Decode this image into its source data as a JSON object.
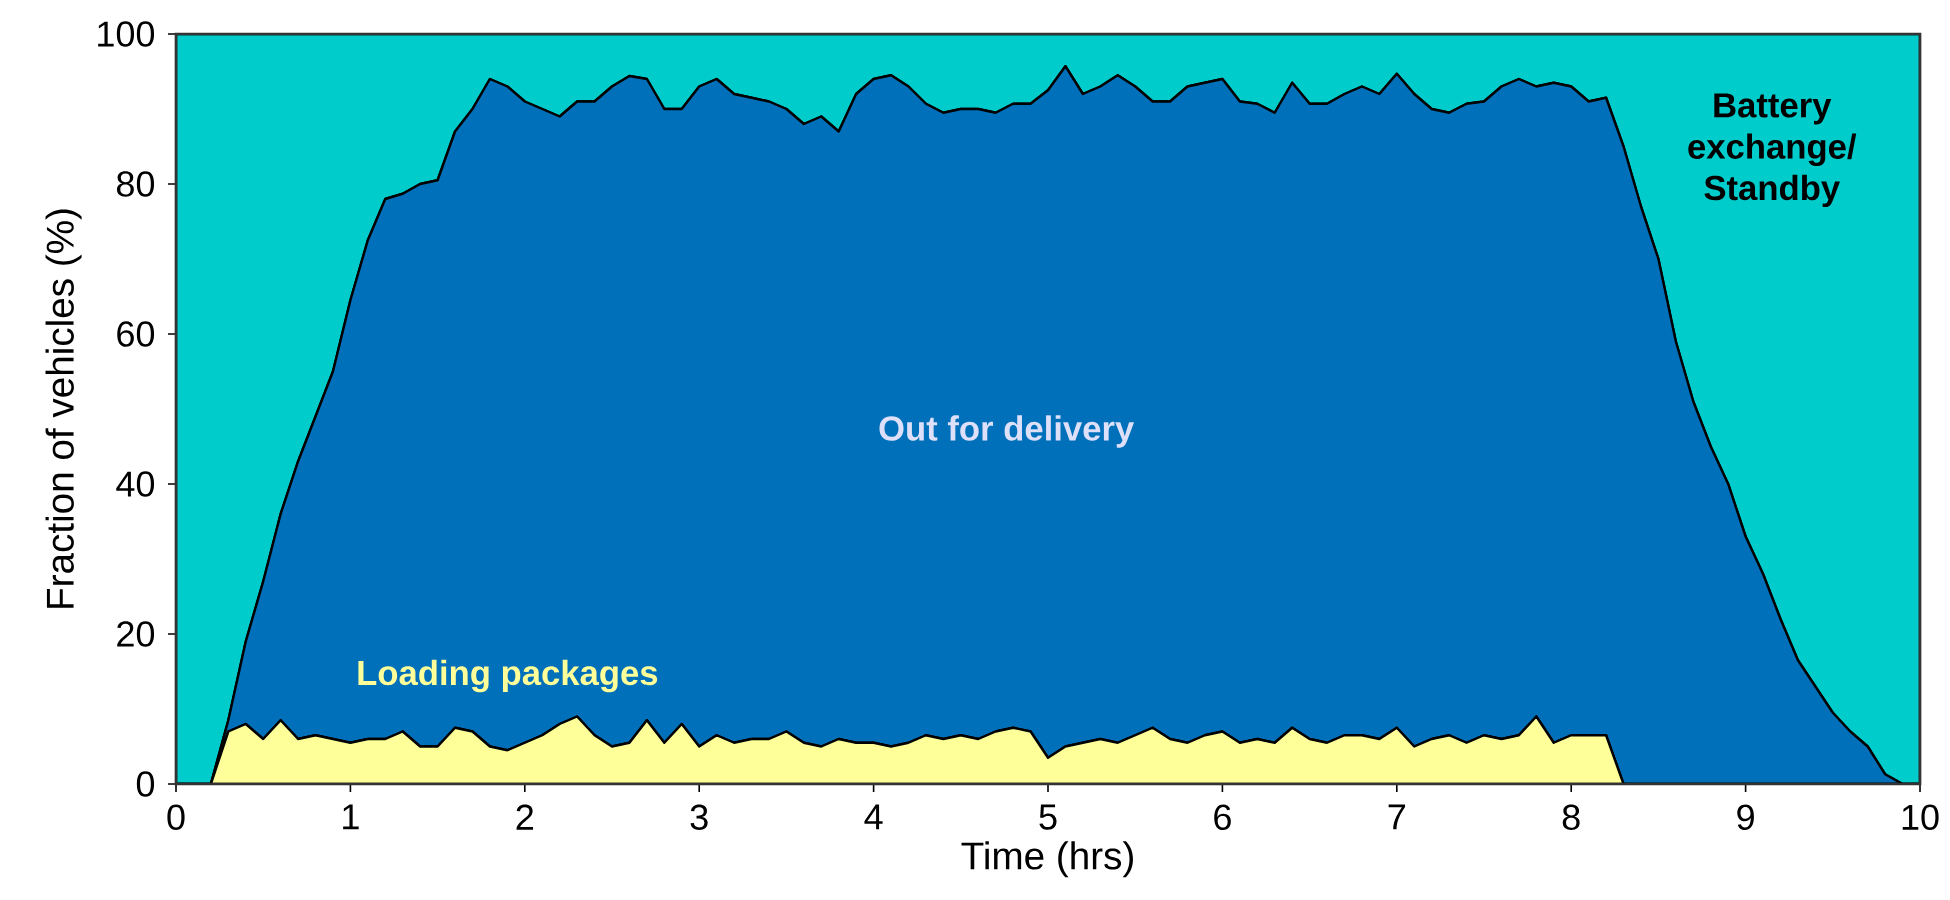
{
  "chart_data": {
    "type": "area",
    "stacked": true,
    "xlabel": "Time (hrs)",
    "ylabel": "Fraction of vehicles (%)",
    "xlim": [
      0,
      10
    ],
    "ylim": [
      0,
      100
    ],
    "xticks": [
      0,
      1,
      2,
      3,
      4,
      5,
      6,
      7,
      8,
      9,
      10
    ],
    "yticks": [
      0,
      20,
      40,
      60,
      80,
      100
    ],
    "grid": false,
    "legend": false,
    "x": [
      0,
      0.1,
      0.2,
      0.3,
      0.4,
      0.5,
      0.6,
      0.7,
      0.8,
      0.9,
      1,
      1.1,
      1.2,
      1.3,
      1.4,
      1.5,
      1.6,
      1.7,
      1.8,
      1.9,
      2,
      2.1,
      2.2,
      2.3,
      2.4,
      2.5,
      2.6,
      2.7,
      2.8,
      2.9,
      3,
      3.1,
      3.2,
      3.3,
      3.4,
      3.5,
      3.6,
      3.7,
      3.8,
      3.9,
      4,
      4.1,
      4.2,
      4.3,
      4.4,
      4.5,
      4.6,
      4.7,
      4.8,
      4.9,
      5,
      5.1,
      5.2,
      5.3,
      5.4,
      5.5,
      5.6,
      5.7,
      5.8,
      5.9,
      6,
      6.1,
      6.2,
      6.3,
      6.4,
      6.5,
      6.6,
      6.7,
      6.8,
      6.9,
      7,
      7.1,
      7.2,
      7.3,
      7.4,
      7.5,
      7.6,
      7.7,
      7.8,
      7.9,
      8,
      8.1,
      8.2,
      8.3,
      8.4,
      8.5,
      8.6,
      8.7,
      8.8,
      8.9,
      9,
      9.1,
      9.2,
      9.3,
      9.4,
      9.5,
      9.6,
      9.7,
      9.8,
      9.9,
      10
    ],
    "series": [
      {
        "name": "Loading packages",
        "color": "#ffff99",
        "values": [
          0,
          0,
          0,
          7,
          8,
          6,
          8.5,
          6,
          6.5,
          6,
          5.5,
          6,
          6,
          7,
          5,
          5,
          7.5,
          7,
          5,
          4.5,
          5.5,
          6.5,
          8,
          9,
          6.5,
          5,
          5.5,
          8.5,
          5.5,
          8,
          5,
          6.5,
          5.5,
          6,
          6,
          7,
          5.5,
          5,
          6,
          5.5,
          5.5,
          5,
          5.5,
          6.5,
          6,
          6.5,
          6,
          7,
          7.5,
          7,
          3.5,
          5,
          5.5,
          6,
          5.5,
          6.5,
          7.5,
          6,
          5.5,
          6.5,
          7,
          5.5,
          6,
          5.5,
          7.5,
          6,
          5.5,
          6.5,
          6.5,
          6,
          7.5,
          5,
          6,
          6.5,
          5.5,
          6.5,
          6,
          6.5,
          9,
          5.5,
          6.5,
          6.5,
          6.5,
          0,
          0,
          0,
          0,
          0,
          0,
          0,
          0,
          0,
          0,
          0,
          0,
          0,
          0,
          0,
          0,
          0,
          0
        ]
      },
      {
        "name": "Out for delivery",
        "color": "#0070bb",
        "values": [
          0,
          0,
          0,
          1.5,
          11,
          21,
          27.5,
          37,
          42.5,
          49,
          59,
          66.5,
          72,
          71.7,
          75,
          75.5,
          79.5,
          83,
          89,
          88.5,
          85.5,
          83.5,
          81,
          82,
          84.5,
          88,
          88.9,
          85.5,
          84.5,
          82,
          88,
          87.5,
          86.5,
          85.5,
          85,
          83,
          82.5,
          84,
          81,
          86.5,
          88.5,
          89.5,
          87.5,
          84.2,
          83.5,
          83.5,
          84,
          82.5,
          83.2,
          83.7,
          89,
          90.7,
          86.5,
          87,
          89,
          86.5,
          83.5,
          85,
          87.5,
          87,
          87,
          85.5,
          84.7,
          84,
          86,
          84.7,
          85.2,
          85.5,
          86.5,
          86,
          87.2,
          87,
          84,
          83,
          85.2,
          84.5,
          87,
          87.5,
          84,
          88,
          86.5,
          84.5,
          85,
          85,
          77,
          70,
          59,
          51,
          45,
          40,
          33,
          28,
          22,
          16.5,
          13,
          9.5,
          7,
          5,
          1.3,
          0,
          0
        ]
      },
      {
        "name": "Battery exchange/Standby",
        "color": "#00cccc",
        "values": [
          100,
          100,
          100,
          91.5,
          81,
          73,
          64,
          57,
          51,
          45,
          35.5,
          27.5,
          22,
          21.3,
          20,
          19.5,
          13,
          10,
          6,
          7,
          9,
          10,
          11,
          9,
          9,
          7,
          5.6,
          6,
          10,
          10,
          7,
          6,
          8,
          8.5,
          9,
          10,
          12,
          11,
          13,
          8,
          6,
          5.5,
          7,
          9.3,
          10.5,
          10,
          10,
          10.5,
          9.3,
          9.3,
          7.5,
          4.3,
          8,
          7,
          5.5,
          7,
          9,
          9,
          7,
          6.5,
          6,
          9,
          9.3,
          10.5,
          6.5,
          9.3,
          9.3,
          8,
          7,
          8,
          5.3,
          8,
          10,
          10.5,
          9.3,
          9,
          7,
          6,
          7,
          6.5,
          7,
          9,
          8.5,
          15,
          23,
          30,
          41,
          49,
          55,
          60,
          67,
          72,
          78,
          83.5,
          87,
          90.5,
          93,
          95,
          98.7,
          100,
          100
        ]
      }
    ]
  }
}
